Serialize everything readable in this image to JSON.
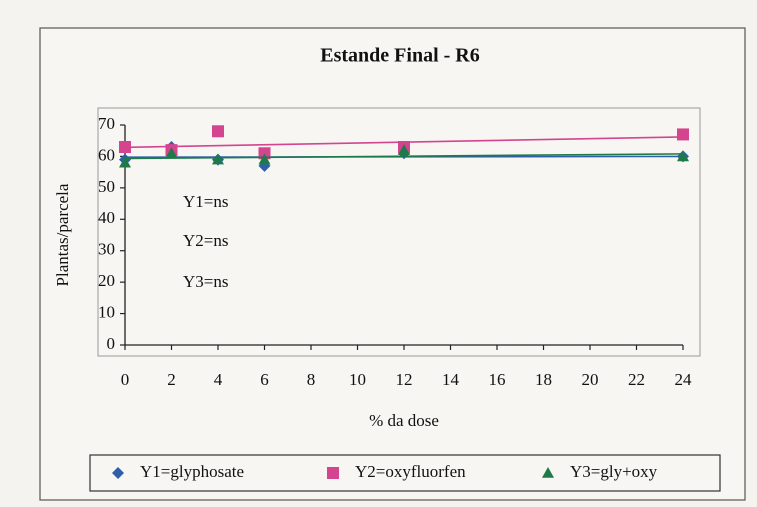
{
  "chart_data": {
    "type": "scatter",
    "title": "Estande Final - R6",
    "x_label": "% da dose",
    "y_label": "Plantas/parcela",
    "annotations": [
      "Y1=ns",
      "Y2=ns",
      "Y3=ns"
    ],
    "xlim": [
      0,
      24
    ],
    "ylim": [
      0,
      70
    ],
    "xticks": [
      0,
      2,
      4,
      6,
      8,
      10,
      12,
      14,
      16,
      18,
      20,
      22,
      24
    ],
    "yticks": [
      0,
      10,
      20,
      30,
      40,
      50,
      60,
      70
    ],
    "trendline": true,
    "legend": "bottom",
    "series": [
      {
        "name": "Y1=glyphosate",
        "color": "#2e5fa8",
        "marker": "diamond",
        "x": [
          0,
          2,
          4,
          6,
          12,
          24
        ],
        "values": [
          59,
          63,
          59,
          57,
          61,
          60
        ]
      },
      {
        "name": "Y2=oxyfluorfen",
        "color": "#d4448f",
        "marker": "square",
        "x": [
          0,
          2,
          4,
          6,
          12,
          24
        ],
        "values": [
          63,
          62,
          68,
          61,
          63,
          67
        ]
      },
      {
        "name": "Y3=gly+oxy",
        "color": "#1f7a4a",
        "marker": "triangle",
        "x": [
          0,
          2,
          4,
          6,
          12,
          24
        ],
        "values": [
          58,
          61,
          59,
          59,
          62,
          60
        ]
      }
    ]
  }
}
